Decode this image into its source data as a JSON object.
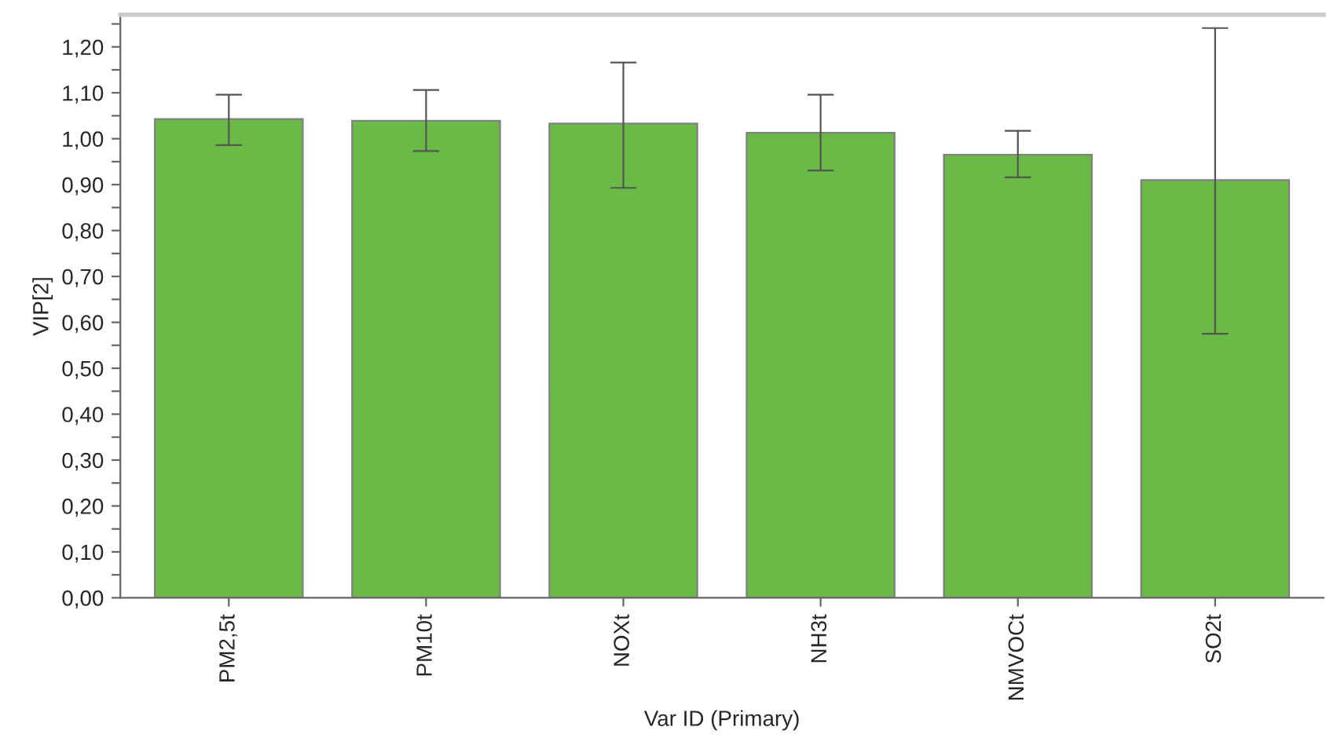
{
  "chart_data": {
    "type": "bar",
    "xlabel": "Var ID (Primary)",
    "ylabel": "VIP[2]",
    "categories": [
      "PM2,5t",
      "PM10t",
      "NOXt",
      "NH3t",
      "NMVOCt",
      "SO2t"
    ],
    "values": [
      1.043,
      1.039,
      1.033,
      1.013,
      0.965,
      0.91
    ],
    "errors": [
      [
        0.986,
        1.096
      ],
      [
        0.973,
        1.106
      ],
      [
        0.893,
        1.166
      ],
      [
        0.931,
        1.096
      ],
      [
        0.916,
        1.017
      ],
      [
        0.575,
        1.241
      ]
    ],
    "color": "#6abb45",
    "ylim": [
      0,
      1.27
    ],
    "yticks": [
      {
        "value": 0,
        "label": "0,00"
      },
      {
        "value": 0.05,
        "label": null
      },
      {
        "value": 0.1,
        "label": "0,10"
      },
      {
        "value": 0.15,
        "label": null
      },
      {
        "value": 0.2,
        "label": "0,20"
      },
      {
        "value": 0.25,
        "label": null
      },
      {
        "value": 0.3,
        "label": "0,30"
      },
      {
        "value": 0.35,
        "label": null
      },
      {
        "value": 0.4,
        "label": "0,40"
      },
      {
        "value": 0.45,
        "label": null
      },
      {
        "value": 0.5,
        "label": "0,50"
      },
      {
        "value": 0.55,
        "label": null
      },
      {
        "value": 0.6,
        "label": "0,60"
      },
      {
        "value": 0.65,
        "label": null
      },
      {
        "value": 0.7,
        "label": "0,70"
      },
      {
        "value": 0.75,
        "label": null
      },
      {
        "value": 0.8,
        "label": "0,80"
      },
      {
        "value": 0.85,
        "label": null
      },
      {
        "value": 0.9,
        "label": "0,90"
      },
      {
        "value": 0.95,
        "label": null
      },
      {
        "value": 1.0,
        "label": "1,00"
      },
      {
        "value": 1.05,
        "label": null
      },
      {
        "value": 1.1,
        "label": "1,10"
      },
      {
        "value": 1.15,
        "label": null
      },
      {
        "value": 1.2,
        "label": "1,20"
      },
      {
        "value": 1.25,
        "label": null
      }
    ]
  }
}
